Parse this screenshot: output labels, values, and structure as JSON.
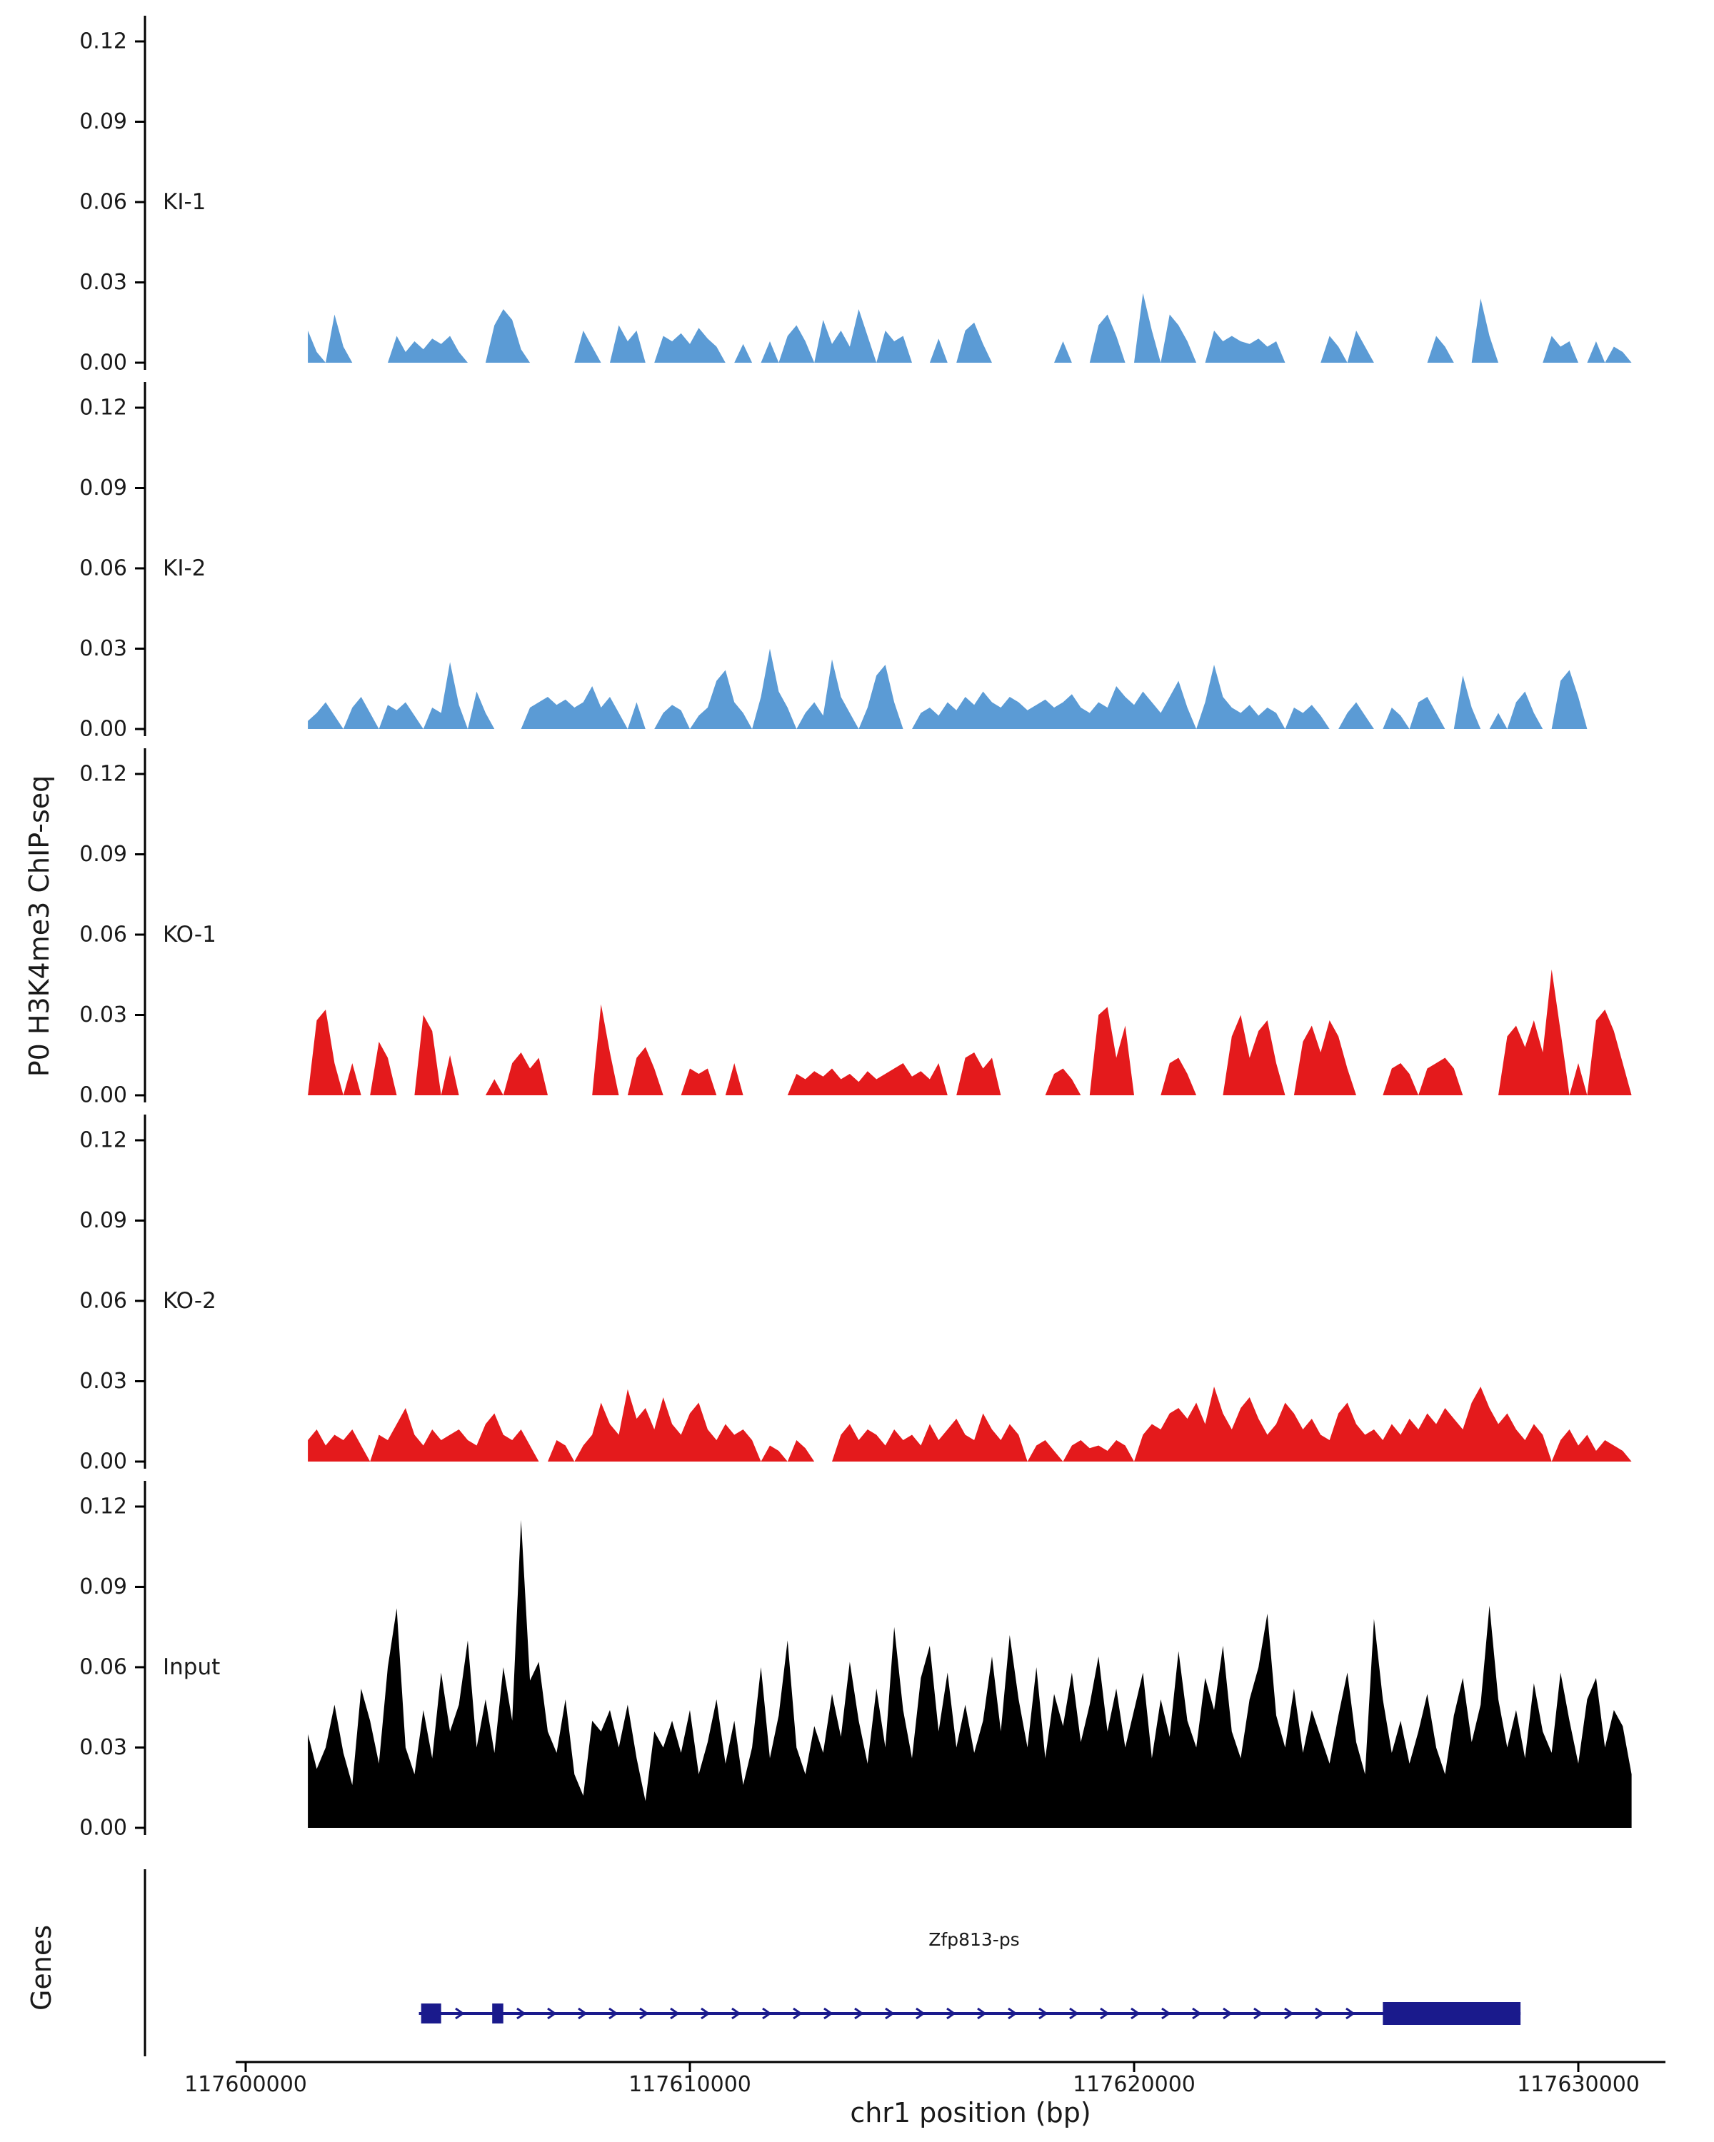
{
  "figure": {
    "y_axis_label": "P0 H3K4me3 ChIP-seq",
    "genes_label": "Genes",
    "x_axis_title": "chr1 position (bp)",
    "gene_name": "Zfp813-ps",
    "y_ticks": [
      "0.00",
      "0.03",
      "0.06",
      "0.09",
      "0.12"
    ],
    "x_ticks": [
      "117600000",
      "117610000",
      "117620000",
      "117630000"
    ]
  },
  "chart_data": {
    "type": "area",
    "title": "",
    "xlabel": "chr1 position (bp)",
    "ylabel": "P0 H3K4me3 ChIP-seq",
    "x_range_bp": [
      117600000,
      117630000
    ],
    "y_range": [
      0,
      0.12
    ],
    "y_tick_values": [
      0,
      0.03,
      0.06,
      0.09,
      0.12
    ],
    "x_tick_values": [
      117600000,
      117610000,
      117620000,
      117630000
    ],
    "sample_start_bp": 117601400,
    "sample_step_bp": 200,
    "tracks": [
      {
        "label": "KI-1",
        "color": "#5B9BD5",
        "values": [
          0.012,
          0.004,
          0,
          0.018,
          0.006,
          0,
          0,
          0,
          0,
          0,
          0.01,
          0.004,
          0.008,
          0.005,
          0.009,
          0.007,
          0.01,
          0.004,
          0,
          0,
          0,
          0.014,
          0.02,
          0.016,
          0.005,
          0,
          0,
          0,
          0,
          0,
          0,
          0.012,
          0.006,
          0,
          0,
          0.014,
          0.008,
          0.012,
          0,
          0,
          0.01,
          0.008,
          0.011,
          0.007,
          0.013,
          0.009,
          0.006,
          0,
          0,
          0.007,
          0,
          0,
          0.008,
          0,
          0.01,
          0.014,
          0.008,
          0,
          0.016,
          0.007,
          0.012,
          0.006,
          0.02,
          0.01,
          0,
          0.012,
          0.008,
          0.01,
          0,
          0,
          0,
          0.009,
          0,
          0,
          0.012,
          0.015,
          0.007,
          0,
          0,
          0,
          0,
          0,
          0,
          0,
          0,
          0.008,
          0,
          0,
          0,
          0.014,
          0.018,
          0.01,
          0,
          0,
          0.026,
          0.012,
          0,
          0.018,
          0.014,
          0.008,
          0,
          0,
          0.012,
          0.008,
          0.01,
          0.008,
          0.007,
          0.009,
          0.006,
          0.008,
          0,
          0,
          0,
          0,
          0,
          0.01,
          0.006,
          0,
          0.012,
          0.006,
          0,
          0,
          0,
          0,
          0,
          0,
          0,
          0.01,
          0.006,
          0,
          0,
          0,
          0.024,
          0.01,
          0,
          0,
          0,
          0,
          0,
          0,
          0.01,
          0.006,
          0.008,
          0,
          0,
          0.008,
          0,
          0.006,
          0.004,
          0
        ]
      },
      {
        "label": "KI-2",
        "color": "#5B9BD5",
        "values": [
          0.003,
          0.006,
          0.01,
          0.005,
          0,
          0.008,
          0.012,
          0.006,
          0,
          0.009,
          0.007,
          0.01,
          0.005,
          0,
          0.008,
          0.006,
          0.025,
          0.009,
          0,
          0.014,
          0.006,
          0,
          0,
          0,
          0,
          0.008,
          0.01,
          0.012,
          0.009,
          0.011,
          0.008,
          0.01,
          0.016,
          0.008,
          0.012,
          0.006,
          0,
          0.01,
          0,
          0,
          0.006,
          0.009,
          0.007,
          0,
          0.005,
          0.008,
          0.018,
          0.022,
          0.01,
          0.006,
          0,
          0.012,
          0.03,
          0.014,
          0.008,
          0,
          0.006,
          0.01,
          0.005,
          0.026,
          0.012,
          0.006,
          0,
          0.008,
          0.02,
          0.024,
          0.01,
          0,
          0,
          0.006,
          0.008,
          0.005,
          0.01,
          0.007,
          0.012,
          0.009,
          0.014,
          0.01,
          0.008,
          0.012,
          0.01,
          0.007,
          0.009,
          0.011,
          0.008,
          0.01,
          0.013,
          0.008,
          0.006,
          0.01,
          0.008,
          0.016,
          0.012,
          0.009,
          0.014,
          0.01,
          0.006,
          0.012,
          0.018,
          0.008,
          0,
          0.01,
          0.024,
          0.012,
          0.008,
          0.006,
          0.009,
          0.005,
          0.008,
          0.006,
          0,
          0.008,
          0.006,
          0.009,
          0.005,
          0,
          0,
          0.006,
          0.01,
          0.005,
          0,
          0,
          0.008,
          0.005,
          0,
          0.01,
          0.012,
          0.006,
          0,
          0,
          0.02,
          0.008,
          0,
          0,
          0.006,
          0,
          0.01,
          0.014,
          0.006,
          0,
          0,
          0.018,
          0.022,
          0.012,
          0,
          0,
          0,
          0,
          0,
          0
        ]
      },
      {
        "label": "KO-1",
        "color": "#E41A1C",
        "values": [
          0,
          0.028,
          0.032,
          0.012,
          0,
          0.012,
          0,
          0,
          0.02,
          0.014,
          0,
          0,
          0,
          0.03,
          0.024,
          0,
          0.015,
          0,
          0,
          0,
          0,
          0.006,
          0,
          0.012,
          0.016,
          0.01,
          0.014,
          0,
          0,
          0,
          0,
          0,
          0,
          0.034,
          0.016,
          0,
          0,
          0.014,
          0.018,
          0.01,
          0,
          0,
          0,
          0.01,
          0.008,
          0.01,
          0,
          0,
          0.012,
          0,
          0,
          0,
          0,
          0,
          0,
          0.008,
          0.006,
          0.009,
          0.007,
          0.01,
          0.006,
          0.008,
          0.005,
          0.009,
          0.006,
          0.008,
          0.01,
          0.012,
          0.007,
          0.009,
          0.006,
          0.012,
          0,
          0,
          0.014,
          0.016,
          0.01,
          0.014,
          0,
          0,
          0,
          0,
          0,
          0,
          0.008,
          0.01,
          0.006,
          0,
          0,
          0.03,
          0.033,
          0.014,
          0.026,
          0,
          0,
          0,
          0,
          0.012,
          0.014,
          0.008,
          0,
          0,
          0,
          0,
          0.022,
          0.03,
          0.014,
          0.024,
          0.028,
          0.012,
          0,
          0,
          0.02,
          0.026,
          0.016,
          0.028,
          0.022,
          0.01,
          0,
          0,
          0,
          0,
          0.01,
          0.012,
          0.008,
          0,
          0.01,
          0.012,
          0.014,
          0.01,
          0,
          0,
          0,
          0,
          0,
          0.022,
          0.026,
          0.018,
          0.028,
          0.016,
          0.047,
          0.024,
          0,
          0.012,
          0,
          0.028,
          0.032,
          0.024,
          0.012,
          0
        ]
      },
      {
        "label": "KO-2",
        "color": "#E41A1C",
        "values": [
          0.008,
          0.012,
          0.006,
          0.01,
          0.008,
          0.012,
          0.006,
          0,
          0.01,
          0.008,
          0.014,
          0.02,
          0.01,
          0.006,
          0.012,
          0.008,
          0.01,
          0.012,
          0.008,
          0.006,
          0.014,
          0.018,
          0.01,
          0.008,
          0.012,
          0.006,
          0,
          0,
          0.008,
          0.006,
          0,
          0.006,
          0.01,
          0.022,
          0.014,
          0.01,
          0.027,
          0.016,
          0.02,
          0.012,
          0.024,
          0.014,
          0.01,
          0.018,
          0.022,
          0.012,
          0.008,
          0.014,
          0.01,
          0.012,
          0.008,
          0,
          0.006,
          0.004,
          0,
          0.008,
          0.005,
          0,
          0,
          0,
          0.01,
          0.014,
          0.008,
          0.012,
          0.01,
          0.006,
          0.012,
          0.008,
          0.01,
          0.006,
          0.014,
          0.008,
          0.012,
          0.016,
          0.01,
          0.008,
          0.018,
          0.012,
          0.008,
          0.014,
          0.01,
          0,
          0.006,
          0.008,
          0.004,
          0,
          0.006,
          0.008,
          0.005,
          0.006,
          0.004,
          0.008,
          0.006,
          0,
          0.01,
          0.014,
          0.012,
          0.018,
          0.02,
          0.016,
          0.022,
          0.014,
          0.028,
          0.018,
          0.012,
          0.02,
          0.024,
          0.016,
          0.01,
          0.014,
          0.022,
          0.018,
          0.012,
          0.016,
          0.01,
          0.008,
          0.018,
          0.022,
          0.014,
          0.01,
          0.012,
          0.008,
          0.014,
          0.01,
          0.016,
          0.012,
          0.018,
          0.014,
          0.02,
          0.016,
          0.012,
          0.022,
          0.028,
          0.02,
          0.014,
          0.018,
          0.012,
          0.008,
          0.014,
          0.01,
          0,
          0.008,
          0.012,
          0.006,
          0.01,
          0.004,
          0.008,
          0.006,
          0.004,
          0
        ]
      },
      {
        "label": "Input",
        "color": "#000000",
        "values": [
          0.035,
          0.022,
          0.03,
          0.046,
          0.028,
          0.016,
          0.052,
          0.04,
          0.024,
          0.06,
          0.082,
          0.03,
          0.02,
          0.044,
          0.026,
          0.058,
          0.036,
          0.046,
          0.07,
          0.03,
          0.048,
          0.028,
          0.06,
          0.04,
          0.115,
          0.055,
          0.062,
          0.036,
          0.028,
          0.048,
          0.02,
          0.012,
          0.04,
          0.036,
          0.044,
          0.03,
          0.046,
          0.026,
          0.01,
          0.036,
          0.03,
          0.04,
          0.028,
          0.044,
          0.02,
          0.032,
          0.048,
          0.024,
          0.04,
          0.016,
          0.03,
          0.06,
          0.026,
          0.042,
          0.07,
          0.03,
          0.02,
          0.038,
          0.028,
          0.05,
          0.034,
          0.062,
          0.04,
          0.024,
          0.052,
          0.03,
          0.075,
          0.044,
          0.026,
          0.056,
          0.068,
          0.036,
          0.058,
          0.03,
          0.046,
          0.028,
          0.04,
          0.064,
          0.036,
          0.072,
          0.048,
          0.03,
          0.06,
          0.026,
          0.05,
          0.038,
          0.058,
          0.032,
          0.046,
          0.064,
          0.036,
          0.052,
          0.03,
          0.044,
          0.058,
          0.026,
          0.048,
          0.034,
          0.066,
          0.04,
          0.03,
          0.056,
          0.044,
          0.068,
          0.036,
          0.026,
          0.048,
          0.06,
          0.08,
          0.042,
          0.03,
          0.052,
          0.028,
          0.044,
          0.034,
          0.024,
          0.042,
          0.058,
          0.032,
          0.02,
          0.078,
          0.048,
          0.028,
          0.04,
          0.024,
          0.036,
          0.05,
          0.03,
          0.02,
          0.042,
          0.056,
          0.032,
          0.046,
          0.083,
          0.048,
          0.03,
          0.044,
          0.026,
          0.054,
          0.036,
          0.028,
          0.058,
          0.04,
          0.024,
          0.048,
          0.056,
          0.03,
          0.044,
          0.038,
          0.02
        ]
      }
    ],
    "gene_track": {
      "gene": "Zfp813-ps",
      "color": "#1A1A8C",
      "strand": "+",
      "line_start_bp": 117603900,
      "line_end_bp": 117628700,
      "exons_bp": [
        [
          117603950,
          117604400
        ],
        [
          117605550,
          117605800
        ],
        [
          117625600,
          117628700
        ]
      ]
    }
  }
}
